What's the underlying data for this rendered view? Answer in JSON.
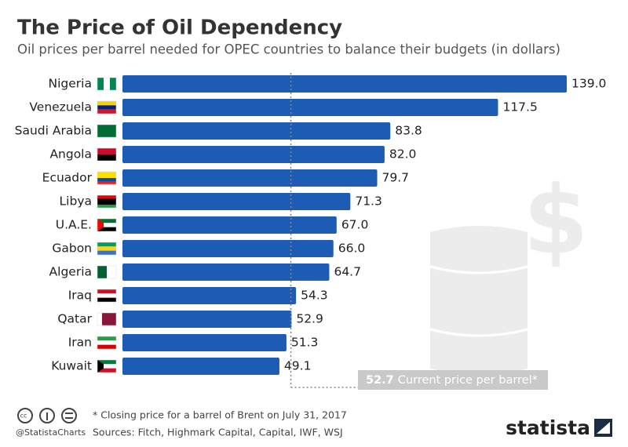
{
  "chart_data": {
    "type": "hbar",
    "title": "The Price of Oil Dependency",
    "subtitle": "Oil prices per barrel needed for OPEC countries to balance their budgets (in dollars)",
    "categories": [
      "Nigeria",
      "Venezuela",
      "Saudi Arabia",
      "Angola",
      "Ecuador",
      "Libya",
      "U.A.E.",
      "Gabon",
      "Algeria",
      "Iraq",
      "Qatar",
      "Iran",
      "Kuwait"
    ],
    "values": [
      139.0,
      117.5,
      83.8,
      82.0,
      79.7,
      71.3,
      67.0,
      66.0,
      64.7,
      54.3,
      52.9,
      51.3,
      49.1
    ],
    "value_labels": [
      "139.0",
      "117.5",
      "83.8",
      "82.0",
      "79.7",
      "71.3",
      "67.0",
      "66.0",
      "64.7",
      "54.3",
      "52.9",
      "51.3",
      "49.1"
    ],
    "color": "#1d5cb4",
    "reference_line": {
      "value": 52.7,
      "label": "Current price per barrel*"
    },
    "footnote": "* Closing price for a barrel of Brent on July 31, 2017",
    "source": "Sources: Fitch, Highmark Capital, Capital, IWF, WSJ",
    "handle": "@StatistaCharts",
    "brand": "statista"
  }
}
